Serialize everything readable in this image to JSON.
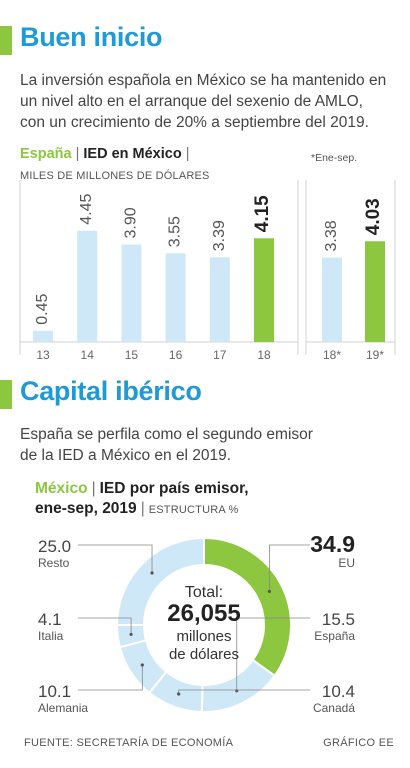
{
  "section1": {
    "title": "Buen inicio",
    "lead": [
      "La inversión española en México se ha mantenido en",
      "un nivel alto en el arranque del sexenio de AMLO,",
      "con un crecimiento de 20% a septiembre del 2019."
    ]
  },
  "section2": {
    "title": "Capital ibérico",
    "lead": [
      "España se perfila como el segundo emisor",
      "de la IED a México en el 2019."
    ]
  },
  "footer": {
    "source": "FUENTE: SECRETARÍA DE ECONOMÍA",
    "credit": "GRÁFICO EE"
  },
  "chart_data": [
    {
      "type": "bar",
      "title_parts": [
        "España",
        "IED en México"
      ],
      "subtitle": "MILES DE MILLONES DE DÓLARES",
      "note": "*Ene-sep.",
      "groups": [
        {
          "categories": [
            "13",
            "14",
            "15",
            "16",
            "17",
            "18"
          ],
          "values": [
            0.45,
            4.45,
            3.9,
            3.55,
            3.39,
            4.15
          ],
          "labels": [
            "0.45",
            "4.45",
            "3.90",
            "3.55",
            "3.39",
            "4.15"
          ],
          "highlight": 5
        },
        {
          "categories": [
            "18*",
            "19*"
          ],
          "values": [
            3.38,
            4.03
          ],
          "labels": [
            "3.38",
            "4.03"
          ],
          "highlight": 1
        }
      ],
      "ylim": [
        0,
        5
      ],
      "colors": {
        "bar": "#cfe8f7",
        "highlight": "#8dc63f",
        "grid": "#d0d0d0"
      }
    },
    {
      "type": "pie",
      "title_parts": [
        "México",
        "IED por país emisor,",
        "ene-sep, 2019"
      ],
      "subtitle": "ESTRUCTURA %",
      "center": {
        "line1": "Total:",
        "value": "26,055",
        "line2": "millones",
        "line3": "de dólares"
      },
      "slices": [
        {
          "label": "EU",
          "value": 34.9,
          "value_text": "34.9"
        },
        {
          "label": "España",
          "value": 15.5,
          "value_text": "15.5"
        },
        {
          "label": "Canadá",
          "value": 10.4,
          "value_text": "10.4"
        },
        {
          "label": "Alemania",
          "value": 10.1,
          "value_text": "10.1"
        },
        {
          "label": "Italia",
          "value": 4.1,
          "value_text": "4.1"
        },
        {
          "label": "Resto",
          "value": 25.0,
          "value_text": "25.0"
        }
      ],
      "colors": {
        "highlight": "#8dc63f",
        "other": "#cfe8f7",
        "divider": "#ffffff",
        "leader": "#888888"
      }
    }
  ]
}
